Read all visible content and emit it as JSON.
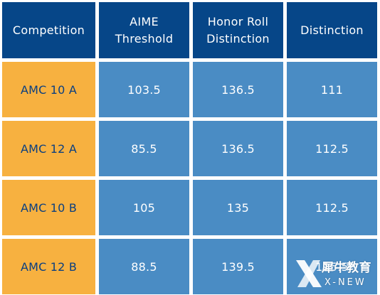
{
  "table": {
    "headers": [
      "Competition",
      "AIME\nThreshold",
      "Honor Roll\nDistinction",
      "Distinction"
    ],
    "rows": [
      {
        "competition": "AMC 10 A",
        "aime_threshold": "103.5",
        "honor_roll_distinction": "136.5",
        "distinction": "111"
      },
      {
        "competition": "AMC 12 A",
        "aime_threshold": "85.5",
        "honor_roll_distinction": "136.5",
        "distinction": "112.5"
      },
      {
        "competition": "AMC 10 B",
        "aime_threshold": "105",
        "honor_roll_distinction": "135",
        "distinction": "112.5"
      },
      {
        "competition": "AMC 12 B",
        "aime_threshold": "88.5",
        "honor_roll_distinction": "139.5",
        "distinction": "115.5"
      }
    ]
  },
  "watermark": {
    "chinese": "犀牛教育",
    "english": "X-NEW"
  },
  "colors": {
    "header_bg": "#064688",
    "row_label_bg": "#f7b140",
    "value_bg": "#4a8cc4",
    "row_label_text": "#0a3f80"
  }
}
